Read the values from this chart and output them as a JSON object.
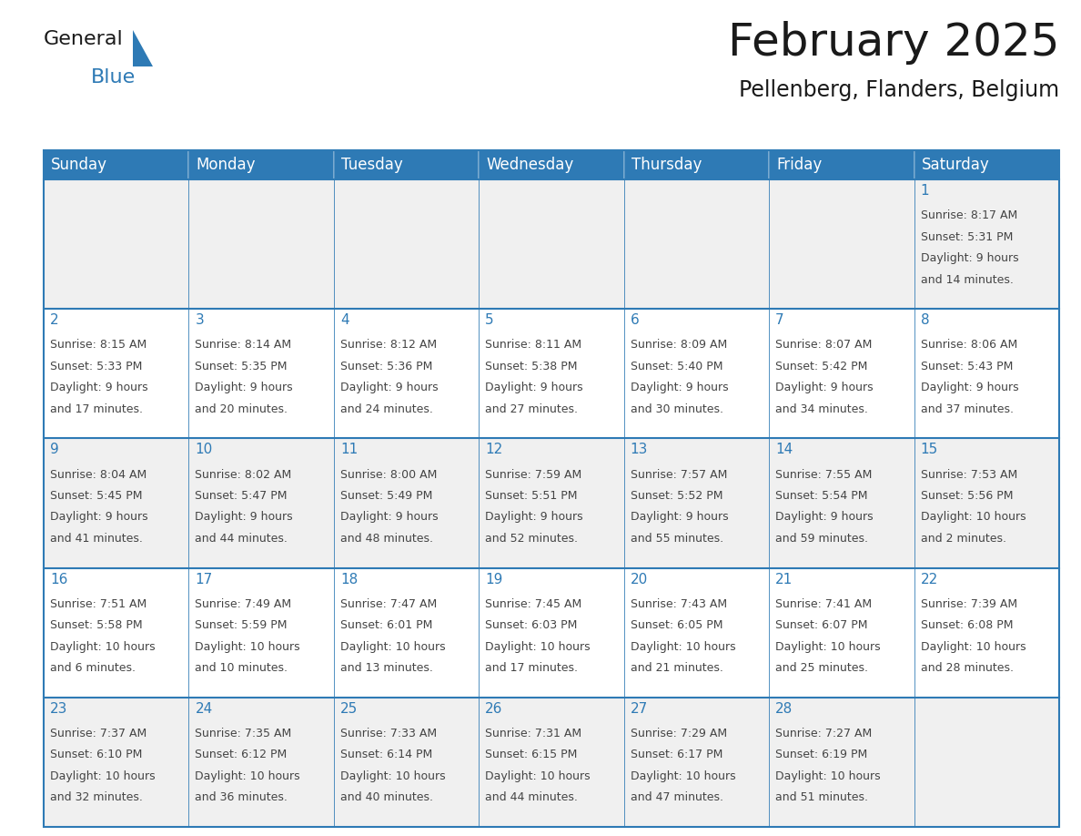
{
  "title": "February 2025",
  "subtitle": "Pellenberg, Flanders, Belgium",
  "header_color": "#2E7AB5",
  "header_text_color": "#FFFFFF",
  "cell_bg_even": "#F0F0F0",
  "cell_bg_odd": "#FFFFFF",
  "border_color": "#2E7AB5",
  "day_number_color": "#2E7AB5",
  "text_color": "#444444",
  "days_of_week": [
    "Sunday",
    "Monday",
    "Tuesday",
    "Wednesday",
    "Thursday",
    "Friday",
    "Saturday"
  ],
  "weeks": [
    [
      {
        "day": null,
        "sunrise": null,
        "sunset": null,
        "daylight": null
      },
      {
        "day": null,
        "sunrise": null,
        "sunset": null,
        "daylight": null
      },
      {
        "day": null,
        "sunrise": null,
        "sunset": null,
        "daylight": null
      },
      {
        "day": null,
        "sunrise": null,
        "sunset": null,
        "daylight": null
      },
      {
        "day": null,
        "sunrise": null,
        "sunset": null,
        "daylight": null
      },
      {
        "day": null,
        "sunrise": null,
        "sunset": null,
        "daylight": null
      },
      {
        "day": 1,
        "sunrise": "8:17 AM",
        "sunset": "5:31 PM",
        "daylight": "9 hours\nand 14 minutes."
      }
    ],
    [
      {
        "day": 2,
        "sunrise": "8:15 AM",
        "sunset": "5:33 PM",
        "daylight": "9 hours\nand 17 minutes."
      },
      {
        "day": 3,
        "sunrise": "8:14 AM",
        "sunset": "5:35 PM",
        "daylight": "9 hours\nand 20 minutes."
      },
      {
        "day": 4,
        "sunrise": "8:12 AM",
        "sunset": "5:36 PM",
        "daylight": "9 hours\nand 24 minutes."
      },
      {
        "day": 5,
        "sunrise": "8:11 AM",
        "sunset": "5:38 PM",
        "daylight": "9 hours\nand 27 minutes."
      },
      {
        "day": 6,
        "sunrise": "8:09 AM",
        "sunset": "5:40 PM",
        "daylight": "9 hours\nand 30 minutes."
      },
      {
        "day": 7,
        "sunrise": "8:07 AM",
        "sunset": "5:42 PM",
        "daylight": "9 hours\nand 34 minutes."
      },
      {
        "day": 8,
        "sunrise": "8:06 AM",
        "sunset": "5:43 PM",
        "daylight": "9 hours\nand 37 minutes."
      }
    ],
    [
      {
        "day": 9,
        "sunrise": "8:04 AM",
        "sunset": "5:45 PM",
        "daylight": "9 hours\nand 41 minutes."
      },
      {
        "day": 10,
        "sunrise": "8:02 AM",
        "sunset": "5:47 PM",
        "daylight": "9 hours\nand 44 minutes."
      },
      {
        "day": 11,
        "sunrise": "8:00 AM",
        "sunset": "5:49 PM",
        "daylight": "9 hours\nand 48 minutes."
      },
      {
        "day": 12,
        "sunrise": "7:59 AM",
        "sunset": "5:51 PM",
        "daylight": "9 hours\nand 52 minutes."
      },
      {
        "day": 13,
        "sunrise": "7:57 AM",
        "sunset": "5:52 PM",
        "daylight": "9 hours\nand 55 minutes."
      },
      {
        "day": 14,
        "sunrise": "7:55 AM",
        "sunset": "5:54 PM",
        "daylight": "9 hours\nand 59 minutes."
      },
      {
        "day": 15,
        "sunrise": "7:53 AM",
        "sunset": "5:56 PM",
        "daylight": "10 hours\nand 2 minutes."
      }
    ],
    [
      {
        "day": 16,
        "sunrise": "7:51 AM",
        "sunset": "5:58 PM",
        "daylight": "10 hours\nand 6 minutes."
      },
      {
        "day": 17,
        "sunrise": "7:49 AM",
        "sunset": "5:59 PM",
        "daylight": "10 hours\nand 10 minutes."
      },
      {
        "day": 18,
        "sunrise": "7:47 AM",
        "sunset": "6:01 PM",
        "daylight": "10 hours\nand 13 minutes."
      },
      {
        "day": 19,
        "sunrise": "7:45 AM",
        "sunset": "6:03 PM",
        "daylight": "10 hours\nand 17 minutes."
      },
      {
        "day": 20,
        "sunrise": "7:43 AM",
        "sunset": "6:05 PM",
        "daylight": "10 hours\nand 21 minutes."
      },
      {
        "day": 21,
        "sunrise": "7:41 AM",
        "sunset": "6:07 PM",
        "daylight": "10 hours\nand 25 minutes."
      },
      {
        "day": 22,
        "sunrise": "7:39 AM",
        "sunset": "6:08 PM",
        "daylight": "10 hours\nand 28 minutes."
      }
    ],
    [
      {
        "day": 23,
        "sunrise": "7:37 AM",
        "sunset": "6:10 PM",
        "daylight": "10 hours\nand 32 minutes."
      },
      {
        "day": 24,
        "sunrise": "7:35 AM",
        "sunset": "6:12 PM",
        "daylight": "10 hours\nand 36 minutes."
      },
      {
        "day": 25,
        "sunrise": "7:33 AM",
        "sunset": "6:14 PM",
        "daylight": "10 hours\nand 40 minutes."
      },
      {
        "day": 26,
        "sunrise": "7:31 AM",
        "sunset": "6:15 PM",
        "daylight": "10 hours\nand 44 minutes."
      },
      {
        "day": 27,
        "sunrise": "7:29 AM",
        "sunset": "6:17 PM",
        "daylight": "10 hours\nand 47 minutes."
      },
      {
        "day": 28,
        "sunrise": "7:27 AM",
        "sunset": "6:19 PM",
        "daylight": "10 hours\nand 51 minutes."
      },
      {
        "day": null,
        "sunrise": null,
        "sunset": null,
        "daylight": null
      }
    ]
  ],
  "logo_text_general": "General",
  "logo_text_blue": "Blue",
  "logo_color_general": "#1A1A1A",
  "logo_color_blue": "#2E7AB5",
  "title_fontsize": 36,
  "subtitle_fontsize": 17,
  "header_fontsize": 12,
  "day_number_fontsize": 11,
  "cell_text_fontsize": 9
}
